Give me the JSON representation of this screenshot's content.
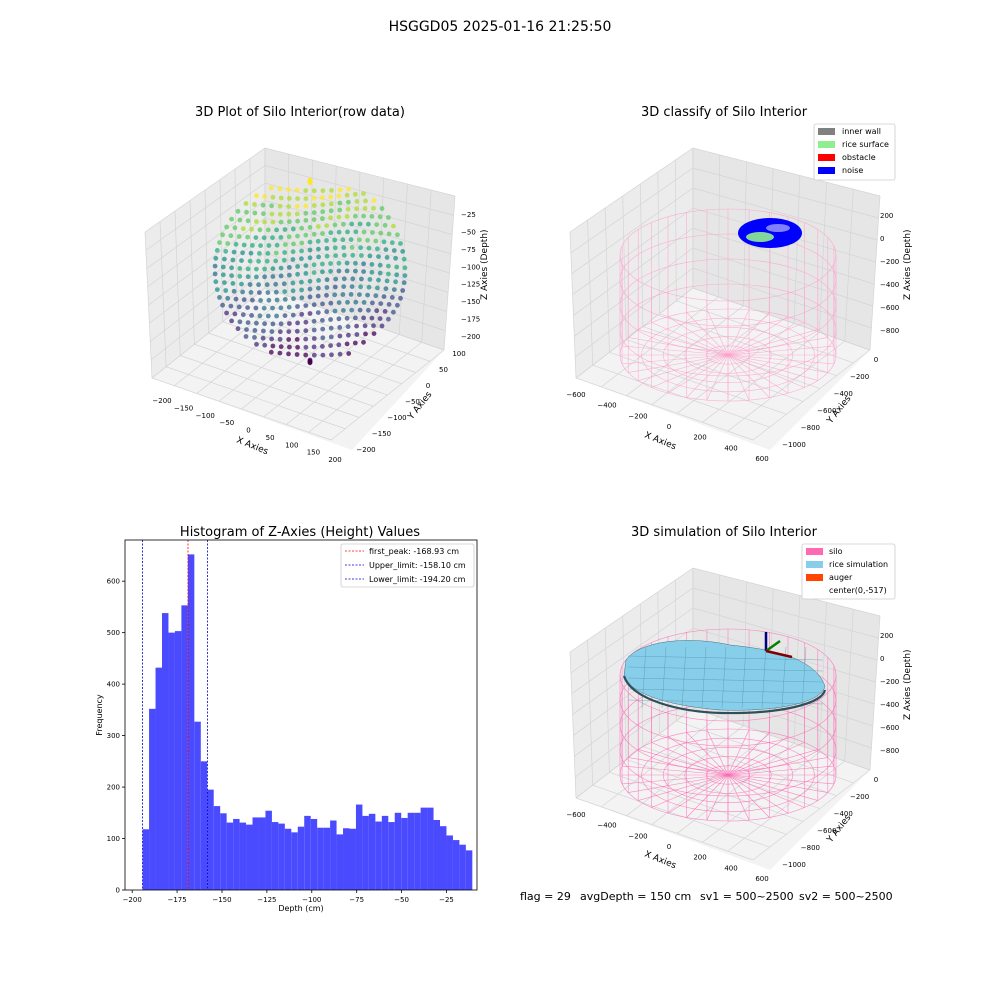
{
  "suptitle": "HSGGD05 2025-01-16 21:25:50",
  "footer": {
    "flag": "flag = 29",
    "avg": "avgDepth = 150 cm",
    "sv1": "sv1 = 500~2500",
    "sv2": "sv2 = 500~2500"
  },
  "chart_data": [
    {
      "type": "scatter",
      "title": "3D Plot of Silo Interior(row data)",
      "xlabel": "X Axies",
      "ylabel": "Y Axies",
      "zlabel": "Z Axies (Depth)",
      "xticks": [
        "−200",
        "−150",
        "−100",
        "−50",
        "0",
        "50",
        "100",
        "150",
        "200"
      ],
      "yticks": [
        "100",
        "50",
        "0",
        "−50",
        "−100",
        "−150",
        "−200"
      ],
      "zticks": [
        "−25",
        "−50",
        "−75",
        "−100",
        "−125",
        "−150",
        "−175",
        "−200"
      ],
      "xlim": [
        -200,
        200
      ],
      "ylim": [
        -200,
        100
      ],
      "zlim": [
        -210,
        -15
      ],
      "colormap": "viridis",
      "grid": true
    },
    {
      "type": "scatter",
      "title": "3D classify of Silo Interior",
      "xlabel": "X Axies",
      "ylabel": "Y Axies",
      "zlabel": "Z Axies (Depth)",
      "xticks": [
        "−600",
        "−400",
        "−200",
        "0",
        "200",
        "400",
        "600"
      ],
      "yticks": [
        "0",
        "−200",
        "−400",
        "−600",
        "−800",
        "−1000"
      ],
      "zticks": [
        "200",
        "0",
        "−200",
        "−400",
        "−600",
        "−800"
      ],
      "legend": [
        {
          "label": "inner wall",
          "color": "#808080"
        },
        {
          "label": "rice surface",
          "color": "#90ee90"
        },
        {
          "label": "obstacle",
          "color": "#ff0000"
        },
        {
          "label": "noise",
          "color": "#0000ff"
        }
      ],
      "legend_position": "top-right",
      "wall_color": "#ff9ecb",
      "grid": true
    },
    {
      "type": "bar",
      "title": "Histogram of Z-Axies (Height) Values",
      "xlabel": "Depth (cm)",
      "ylabel": "Frequency",
      "xlim": [
        -204,
        -8
      ],
      "ylim": [
        0,
        680
      ],
      "xticks": [
        -200,
        -175,
        -150,
        -125,
        -100,
        -75,
        -50,
        -25
      ],
      "xtick_labels": [
        "−200",
        "−175",
        "−150",
        "−125",
        "−100",
        "−75",
        "−50",
        "−25"
      ],
      "yticks": [
        0,
        100,
        200,
        300,
        400,
        500,
        600
      ],
      "bin_start": -194.2,
      "bin_width": 3.6,
      "values": [
        118,
        352,
        432,
        538,
        500,
        503,
        553,
        652,
        327,
        250,
        195,
        163,
        149,
        131,
        138,
        131,
        127,
        141,
        141,
        154,
        132,
        129,
        119,
        112,
        123,
        144,
        138,
        121,
        121,
        135,
        108,
        120,
        119,
        166,
        144,
        148,
        133,
        144,
        132,
        150,
        140,
        150,
        150,
        160,
        160,
        136,
        124,
        106,
        97,
        88,
        77
      ],
      "bar_color": "#4a4aff",
      "vlines": [
        {
          "x": -168.93,
          "label": "first_peak: -168.93 cm",
          "color": "#ff0000"
        },
        {
          "x": -158.1,
          "label": "Upper_limit: -158.10 cm",
          "color": "#0000cc"
        },
        {
          "x": -194.2,
          "label": "Lower_limit: -194.20 cm",
          "color": "#0000cc"
        }
      ],
      "legend_position": "top-right"
    },
    {
      "type": "scatter",
      "title": "3D simulation of Silo Interior",
      "xlabel": "X Axies",
      "ylabel": "Y Axies",
      "zlabel": "Z Axies (Depth)",
      "xticks": [
        "−600",
        "−400",
        "−200",
        "0",
        "200",
        "400",
        "600"
      ],
      "yticks": [
        "0",
        "−200",
        "−400",
        "−600",
        "−800",
        "−1000"
      ],
      "zticks": [
        "200",
        "0",
        "−200",
        "−400",
        "−600",
        "−800"
      ],
      "legend": [
        {
          "label": "silo",
          "color": "#ff69b4"
        },
        {
          "label": "rice simulation",
          "color": "#87ceeb"
        },
        {
          "label": "auger",
          "color": "#ff4500"
        },
        {
          "label": "center(0,-517)",
          "color": "#ffffff"
        }
      ],
      "legend_position": "top-right",
      "grid": true
    }
  ]
}
